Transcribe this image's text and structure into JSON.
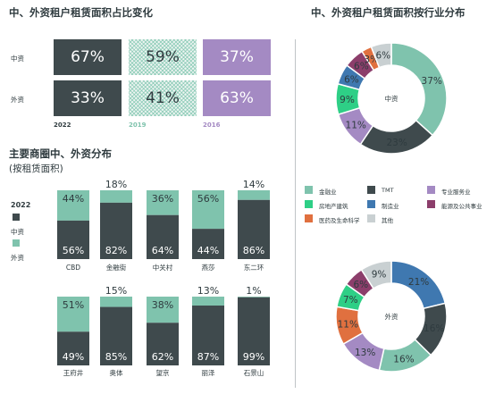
{
  "titles": {
    "left_top": "中、外资租户租赁面积占比变化",
    "right_top": "中、外资租户租赁面积按行业分布",
    "bottom_left": "主要商圈中、外资分布",
    "bottom_left_sub": "(按租赁面积)"
  },
  "colors": {
    "dark": "#3f4a4d",
    "teal": "#7fc3ad",
    "purple": "#a48ac3",
    "orange": "#e0703f",
    "blue": "#3f78b0",
    "green": "#2ecf86",
    "plum": "#8c3e6b",
    "grey": "#c9d0d2"
  },
  "chart_data": [
    {
      "type": "table",
      "title": "中、外资租户租赁面积占比变化",
      "rows": [
        "中资",
        "外资"
      ],
      "columns": [
        "2022",
        "2019",
        "2016"
      ],
      "cells": [
        [
          "67%",
          "59%",
          "37%"
        ],
        [
          "33%",
          "41%",
          "63%"
        ]
      ]
    },
    {
      "type": "bar",
      "stacked": true,
      "title": "主要商圈中、外资分布",
      "subtitle": "(按租赁面积)",
      "legend": {
        "year": "2022",
        "items": [
          "中资",
          "外资"
        ]
      },
      "categories": [
        "CBD",
        "金融街",
        "中关村",
        "燕莎",
        "东二环",
        "王府井",
        "奥体",
        "望京",
        "丽泽",
        "石景山"
      ],
      "series": [
        {
          "name": "中资",
          "values": [
            56,
            82,
            64,
            44,
            86,
            49,
            85,
            62,
            87,
            99
          ]
        },
        {
          "name": "外资",
          "values": [
            44,
            18,
            36,
            56,
            14,
            51,
            15,
            38,
            13,
            1
          ]
        }
      ],
      "labels": {
        "domestic": [
          "56%",
          "82%",
          "64%",
          "44%",
          "86%",
          "49%",
          "85%",
          "62%",
          "87%",
          "99%"
        ],
        "foreign": [
          "44%",
          "18%",
          "36%",
          "56%",
          "14%",
          "51%",
          "15%",
          "38%",
          "13%",
          "1%"
        ]
      },
      "ylim": [
        0,
        100
      ]
    },
    {
      "type": "pie",
      "donut": true,
      "title": "中、外资租户租赁面积按行业分布",
      "center_label": "中资",
      "categories": [
        "金融业",
        "TMT",
        "专业服务业",
        "房地产建筑",
        "制造业",
        "能源及公共事业",
        "医药及生命科学",
        "其他"
      ],
      "values": [
        37,
        23,
        11,
        9,
        6,
        6,
        3,
        6
      ],
      "labels": [
        "37%",
        "23%",
        "11%",
        "9%",
        "6%",
        "6%",
        "3%",
        "6%"
      ]
    },
    {
      "type": "pie",
      "donut": true,
      "center_label": "外资",
      "categories": [
        "金融业",
        "TMT",
        "专业服务业",
        "房地产建筑",
        "制造业",
        "能源及公共事业",
        "医药及生命科学",
        "其他"
      ],
      "values": [
        16,
        16,
        13,
        7,
        21,
        6,
        11,
        9
      ],
      "labels": [
        "16%",
        "16%",
        "13%",
        "7%",
        "21%",
        "6%",
        "11%",
        "9%"
      ]
    }
  ],
  "industry_legend": [
    {
      "label": "金融业",
      "color": "#7fc3ad"
    },
    {
      "label": "TMT",
      "color": "#3f4a4d"
    },
    {
      "label": "专业服务业",
      "color": "#a48ac3"
    },
    {
      "label": "房地产建筑",
      "color": "#2ecf86"
    },
    {
      "label": "制造业",
      "color": "#3f78b0"
    },
    {
      "label": "能源及公共事业",
      "color": "#8c3e6b"
    },
    {
      "label": "医药及生命科学",
      "color": "#e0703f"
    },
    {
      "label": "其他",
      "color": "#c9d0d2"
    }
  ]
}
